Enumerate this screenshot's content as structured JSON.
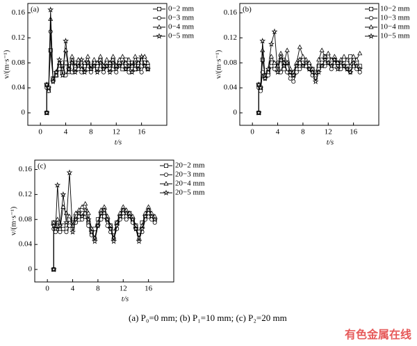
{
  "chart_data": [
    {
      "type": "line",
      "panel_label": "(a)",
      "xlabel": "t/s",
      "ylabel": "v/(m·s⁻¹)",
      "xlim": [
        -2,
        20
      ],
      "ylim": [
        -0.02,
        0.175
      ],
      "xticks": [
        0,
        4,
        8,
        12,
        16
      ],
      "yticks": [
        0,
        0.04,
        0.08,
        0.12,
        0.16
      ],
      "legend": "upper right",
      "x": [
        1,
        1,
        1.3,
        1.6,
        2,
        2.5,
        3,
        3.5,
        4,
        4.5,
        5,
        5.5,
        6,
        6.5,
        7,
        7.5,
        8,
        8.5,
        9,
        9.5,
        10,
        10.5,
        11,
        11.5,
        12,
        12.5,
        13,
        13.5,
        14,
        14.5,
        15,
        15.5,
        16,
        16.5,
        17
      ],
      "series": [
        {
          "name": "0−2 mm",
          "color": "#000000",
          "marker": "square",
          "values": [
            0,
            0.045,
            0.04,
            0.1,
            0.055,
            0.06,
            0.075,
            0.065,
            0.08,
            0.07,
            0.085,
            0.07,
            0.08,
            0.075,
            0.07,
            0.08,
            0.075,
            0.08,
            0.07,
            0.085,
            0.075,
            0.08,
            0.07,
            0.085,
            0.075,
            0.08,
            0.07,
            0.085,
            0.075,
            0.08,
            0.07,
            0.085,
            0.075,
            0.08,
            0.07
          ]
        },
        {
          "name": "0−3 mm",
          "color": "#000000",
          "marker": "circle",
          "values": [
            0,
            0.04,
            0.035,
            0.13,
            0.05,
            0.065,
            0.07,
            0.08,
            0.06,
            0.075,
            0.065,
            0.08,
            0.07,
            0.065,
            0.075,
            0.07,
            0.065,
            0.08,
            0.075,
            0.07,
            0.065,
            0.075,
            0.08,
            0.07,
            0.065,
            0.08,
            0.075,
            0.07,
            0.065,
            0.08,
            0.07,
            0.075,
            0.065,
            0.08,
            0.075
          ]
        },
        {
          "name": "0−4 mm",
          "color": "#000000",
          "marker": "triangle",
          "values": [
            0,
            0.045,
            0.035,
            0.15,
            0.055,
            0.06,
            0.08,
            0.07,
            0.1,
            0.065,
            0.09,
            0.075,
            0.085,
            0.07,
            0.08,
            0.09,
            0.07,
            0.085,
            0.08,
            0.09,
            0.075,
            0.085,
            0.08,
            0.09,
            0.075,
            0.085,
            0.09,
            0.08,
            0.085,
            0.075,
            0.09,
            0.08,
            0.085,
            0.09,
            0.08
          ]
        },
        {
          "name": "0−5 mm",
          "color": "#000000",
          "marker": "star",
          "values": [
            0,
            0.045,
            0.04,
            0.165,
            0.05,
            0.065,
            0.085,
            0.06,
            0.115,
            0.07,
            0.08,
            0.065,
            0.075,
            0.085,
            0.065,
            0.08,
            0.07,
            0.075,
            0.065,
            0.08,
            0.07,
            0.075,
            0.065,
            0.08,
            0.07,
            0.075,
            0.08,
            0.07,
            0.075,
            0.065,
            0.08,
            0.07,
            0.09,
            0.075,
            0.07
          ]
        }
      ]
    },
    {
      "type": "line",
      "panel_label": "(b)",
      "xlabel": "t/s",
      "ylabel": "v/(m·s⁻¹)",
      "xlim": [
        -2,
        20
      ],
      "ylim": [
        -0.02,
        0.175
      ],
      "xticks": [
        0,
        4,
        8,
        12,
        16
      ],
      "yticks": [
        0,
        0.04,
        0.08,
        0.12,
        0.16
      ],
      "legend": "upper right",
      "x": [
        1,
        1,
        1.3,
        1.6,
        2,
        2.5,
        3,
        3.5,
        4,
        4.5,
        5,
        5.5,
        6,
        6.5,
        7,
        7.5,
        8,
        8.5,
        9,
        9.5,
        10,
        10.5,
        11,
        11.5,
        12,
        12.5,
        13,
        13.5,
        14,
        14.5,
        15,
        15.5,
        16,
        16.5,
        17
      ],
      "series": [
        {
          "name": "10−2 mm",
          "color": "#000000",
          "marker": "square",
          "values": [
            0,
            0.045,
            0.04,
            0.085,
            0.06,
            0.065,
            0.08,
            0.075,
            0.07,
            0.085,
            0.07,
            0.08,
            0.065,
            0.06,
            0.07,
            0.08,
            0.085,
            0.08,
            0.075,
            0.07,
            0.065,
            0.075,
            0.085,
            0.09,
            0.085,
            0.08,
            0.085,
            0.08,
            0.075,
            0.085,
            0.08,
            0.09,
            0.085,
            0.08,
            0.075
          ]
        },
        {
          "name": "10−3 mm",
          "color": "#000000",
          "marker": "circle",
          "values": [
            0,
            0.04,
            0.035,
            0.065,
            0.055,
            0.06,
            0.075,
            0.07,
            0.08,
            0.065,
            0.085,
            0.065,
            0.055,
            0.05,
            0.065,
            0.07,
            0.08,
            0.075,
            0.07,
            0.06,
            0.055,
            0.07,
            0.08,
            0.075,
            0.08,
            0.07,
            0.075,
            0.08,
            0.07,
            0.075,
            0.07,
            0.065,
            0.075,
            0.07,
            0.065
          ]
        },
        {
          "name": "10−4 mm",
          "color": "#000000",
          "marker": "triangle",
          "values": [
            0,
            0.045,
            0.04,
            0.1,
            0.06,
            0.065,
            0.09,
            0.08,
            0.075,
            0.095,
            0.08,
            0.1,
            0.07,
            0.065,
            0.08,
            0.105,
            0.09,
            0.085,
            0.08,
            0.07,
            0.06,
            0.085,
            0.1,
            0.09,
            0.095,
            0.085,
            0.09,
            0.08,
            0.085,
            0.09,
            0.085,
            0.075,
            0.09,
            0.085,
            0.095
          ]
        },
        {
          "name": "10−5 mm",
          "color": "#000000",
          "marker": "star",
          "values": [
            0,
            0.045,
            0.04,
            0.115,
            0.055,
            0.07,
            0.11,
            0.13,
            0.065,
            0.09,
            0.075,
            0.08,
            0.065,
            0.06,
            0.075,
            0.085,
            0.075,
            0.08,
            0.07,
            0.065,
            0.05,
            0.065,
            0.075,
            0.085,
            0.08,
            0.075,
            0.085,
            0.07,
            0.08,
            0.075,
            0.07,
            0.065,
            0.08,
            0.075,
            0.07
          ]
        }
      ]
    },
    {
      "type": "line",
      "panel_label": "(c)",
      "xlabel": "t/s",
      "ylabel": "v/(m·s⁻¹)",
      "xlim": [
        -2,
        20
      ],
      "ylim": [
        -0.02,
        0.175
      ],
      "xticks": [
        0,
        4,
        8,
        12,
        16
      ],
      "yticks": [
        0,
        0.04,
        0.08,
        0.12,
        0.16
      ],
      "legend": "upper right",
      "x": [
        1,
        1,
        1.3,
        1.6,
        2,
        2.5,
        3,
        3.5,
        4,
        4.5,
        5,
        5.5,
        6,
        6.5,
        7,
        7.5,
        8,
        8.5,
        9,
        9.5,
        10,
        10.5,
        11,
        11.5,
        12,
        12.5,
        13,
        13.5,
        14,
        14.5,
        15,
        15.5,
        16,
        16.5,
        17
      ],
      "series": [
        {
          "name": "20−2 mm",
          "color": "#000000",
          "marker": "square",
          "values": [
            0,
            0.075,
            0.07,
            0.065,
            0.065,
            0.07,
            0.065,
            0.08,
            0.075,
            0.085,
            0.08,
            0.09,
            0.085,
            0.075,
            0.06,
            0.065,
            0.08,
            0.09,
            0.085,
            0.08,
            0.07,
            0.06,
            0.075,
            0.085,
            0.09,
            0.085,
            0.09,
            0.08,
            0.07,
            0.06,
            0.075,
            0.085,
            0.09,
            0.085,
            0.08
          ]
        },
        {
          "name": "20−3 mm",
          "color": "#000000",
          "marker": "circle",
          "values": [
            0,
            0.065,
            0.06,
            0.07,
            0.06,
            0.065,
            0.06,
            0.07,
            0.065,
            0.075,
            0.085,
            0.08,
            0.09,
            0.07,
            0.055,
            0.05,
            0.07,
            0.08,
            0.085,
            0.07,
            0.06,
            0.05,
            0.065,
            0.08,
            0.085,
            0.08,
            0.085,
            0.075,
            0.065,
            0.055,
            0.06,
            0.08,
            0.085,
            0.08,
            0.075
          ]
        },
        {
          "name": "20−4 mm",
          "color": "#000000",
          "marker": "triangle",
          "values": [
            0,
            0.075,
            0.07,
            0.08,
            0.065,
            0.1,
            0.09,
            0.085,
            0.07,
            0.09,
            0.095,
            0.1,
            0.105,
            0.09,
            0.065,
            0.05,
            0.075,
            0.095,
            0.1,
            0.085,
            0.07,
            0.05,
            0.075,
            0.09,
            0.1,
            0.095,
            0.09,
            0.085,
            0.07,
            0.05,
            0.07,
            0.09,
            0.1,
            0.09,
            0.085
          ]
        },
        {
          "name": "20−5 mm",
          "color": "#000000",
          "marker": "star",
          "values": [
            0,
            0.07,
            0.065,
            0.135,
            0.07,
            0.12,
            0.075,
            0.155,
            0.06,
            0.08,
            0.09,
            0.085,
            0.095,
            0.08,
            0.06,
            0.045,
            0.07,
            0.09,
            0.095,
            0.08,
            0.065,
            0.045,
            0.07,
            0.085,
            0.095,
            0.09,
            0.085,
            0.08,
            0.065,
            0.045,
            0.065,
            0.085,
            0.095,
            0.085,
            0.08
          ]
        }
      ]
    }
  ],
  "caption": "(a)  P₀=0  mm;  (b)  P₁=10  mm;  (c)  P₂=20 mm",
  "watermark": "有色金属在线"
}
